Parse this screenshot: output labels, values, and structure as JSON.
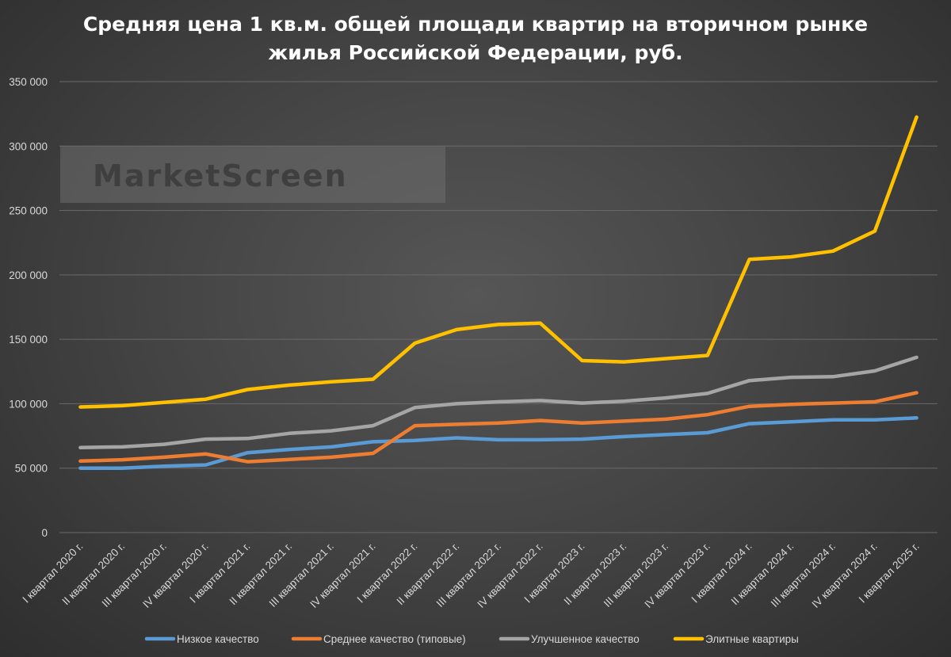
{
  "chart_data": {
    "type": "line",
    "title_lines": [
      "Средняя цена 1 кв.м. общей площади квартир на вторичном рынке",
      "жилья Российской Федерации, руб."
    ],
    "watermark": "MarketScreen",
    "ylim": [
      0,
      350000
    ],
    "yticks": [
      0,
      50000,
      100000,
      150000,
      200000,
      250000,
      300000,
      350000
    ],
    "ytick_labels": [
      "0",
      "50 000",
      "100 000",
      "150 000",
      "200 000",
      "250 000",
      "300 000",
      "350 000"
    ],
    "grid": true,
    "legend_position": "bottom",
    "categories": [
      "I квартал 2020 г.",
      "II квартал 2020 г.",
      "III квартал 2020 г.",
      "IV квартал 2020 г.",
      "I квартал 2021 г.",
      "II квартал 2021 г.",
      "III квартал 2021 г.",
      "IV квартал 2021 г.",
      "I квартал 2022 г.",
      "II квартал 2022 г.",
      "III квартал 2022 г.",
      "IV квартал 2022 г.",
      "I квартал 2023 г.",
      "II квартал 2023 г.",
      "III квартал 2023 г.",
      "IV квартал 2023 г.",
      "I квартал 2024 г.",
      "II квартал 2024 г.",
      "III квартал 2024 г.",
      "IV квартал 2024 г.",
      "I квартал 2025 г."
    ],
    "series": [
      {
        "name": "Низкое качество",
        "color": "#5b9bd5",
        "values": [
          50000,
          50000,
          51500,
          52500,
          62000,
          64500,
          66500,
          70500,
          71500,
          73500,
          72000,
          72000,
          72500,
          74500,
          76000,
          77500,
          84500,
          86000,
          87500,
          87500,
          89000
        ]
      },
      {
        "name": "Среднее качество (типовые)",
        "color": "#ed7d31",
        "values": [
          55500,
          56500,
          58500,
          61000,
          55000,
          56800,
          58500,
          61500,
          83000,
          84000,
          85000,
          87000,
          85000,
          86500,
          88000,
          91500,
          98000,
          99500,
          100500,
          101500,
          108500
        ]
      },
      {
        "name": "Улучшенное качество",
        "color": "#a5a5a5",
        "values": [
          66000,
          66500,
          68500,
          72500,
          73000,
          77000,
          79000,
          83000,
          97000,
          100000,
          101500,
          102500,
          100500,
          102000,
          104500,
          108000,
          118000,
          120500,
          121000,
          125500,
          136000
        ]
      },
      {
        "name": "Элитные квартиры",
        "color": "#ffc000",
        "values": [
          97500,
          98500,
          101000,
          103500,
          111000,
          114500,
          117000,
          119000,
          147000,
          157500,
          161500,
          162500,
          133500,
          132500,
          135000,
          137500,
          212000,
          214000,
          218500,
          234000,
          322500
        ]
      }
    ]
  }
}
